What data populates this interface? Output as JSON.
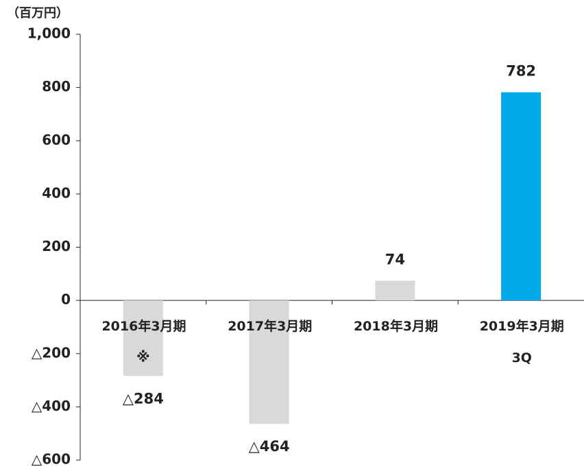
{
  "chart_data": {
    "type": "bar",
    "unit": "（百万円）",
    "categories": [
      "2016年3月期",
      "2017年3月期",
      "2018年3月期",
      "2019年3月期\n3Q"
    ],
    "values": [
      -284,
      -464,
      74,
      782
    ],
    "value_labels": [
      "△284",
      "△464",
      "74",
      "782"
    ],
    "colors": [
      "#d9d9d9",
      "#d9d9d9",
      "#d9d9d9",
      "#00a9e8"
    ],
    "annotation": "※",
    "ylim": [
      -600,
      1000
    ],
    "yticks": [
      {
        "value": -600,
        "label": "△600"
      },
      {
        "value": -400,
        "label": "△400"
      },
      {
        "value": -200,
        "label": "△200"
      },
      0,
      200,
      400,
      600,
      800,
      {
        "value": 1000,
        "label": "1,000"
      }
    ],
    "grid": false
  }
}
